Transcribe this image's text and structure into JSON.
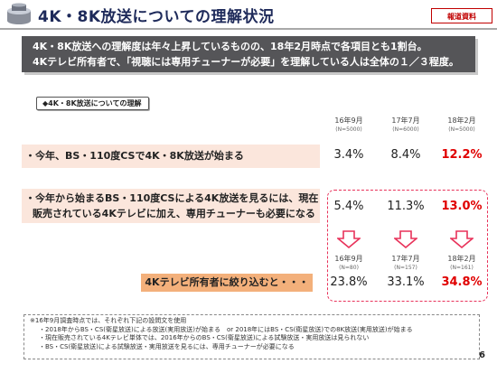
{
  "header": {
    "title": "4K・8K放送についての理解状況",
    "badge": "報道資料"
  },
  "summary": {
    "line1": "4K・8K放送への理解度は年々上昇しているものの、18年2月時点で各項目とも1割台。",
    "line2": "4Kテレビ所有者で、「視聴には専用チューナーが必要」を理解している人は全体の１／３程度。"
  },
  "section_label": "◆4K・8K放送についての理解",
  "columns": [
    {
      "label": "16年9月",
      "n": "(N=5000)"
    },
    {
      "label": "17年7月",
      "n": "(N=6000)"
    },
    {
      "label": "18年2月",
      "n": "(N=5000)"
    }
  ],
  "rows": [
    {
      "text": "・今年、BS・110度CSで4K・8K放送が始まる",
      "values": [
        "3.4%",
        "8.4%",
        "12.2%"
      ]
    },
    {
      "text_line1": "・今年から始まるBS・110度CSによる4K放送を見るには、現在",
      "text_line2": "販売されている4Kテレビに加え、専用チューナーも必要になる",
      "values": [
        "5.4%",
        "11.3%",
        "13.0%"
      ]
    }
  ],
  "owners": {
    "label": "4Kテレビ所有者に絞り込むと・・・",
    "columns": [
      {
        "label": "16年9月",
        "n": "(N=80)"
      },
      {
        "label": "17年7月",
        "n": "(N=157)"
      },
      {
        "label": "18年2月",
        "n": "(N=161)"
      }
    ],
    "values": [
      "23.8%",
      "33.1%",
      "34.8%"
    ]
  },
  "note": {
    "head": "※16年9月調査時点では、それぞれ下記の設問文を使用",
    "l1": "・2018年からBS・CS(衛星放送)による放送(実用放送)が始まる　or 2018年にはBS・CS(衛星放送)での8K放送(実用放送)が始まる",
    "l2": "・現在販売されている4Kテレビ単体では、2016年からのBS・CS(衛星放送)による試験放送・実用放送は見られない",
    "l3": "・BS・CS(衛星放送)による試験放送・実用放送を見るには、専用チューナーが必要になる"
  },
  "page_number": "6",
  "colors": {
    "accent_red": "#e00000",
    "banner": "#555558",
    "band": "#fbe6dc",
    "orange": "#f3b07b"
  }
}
